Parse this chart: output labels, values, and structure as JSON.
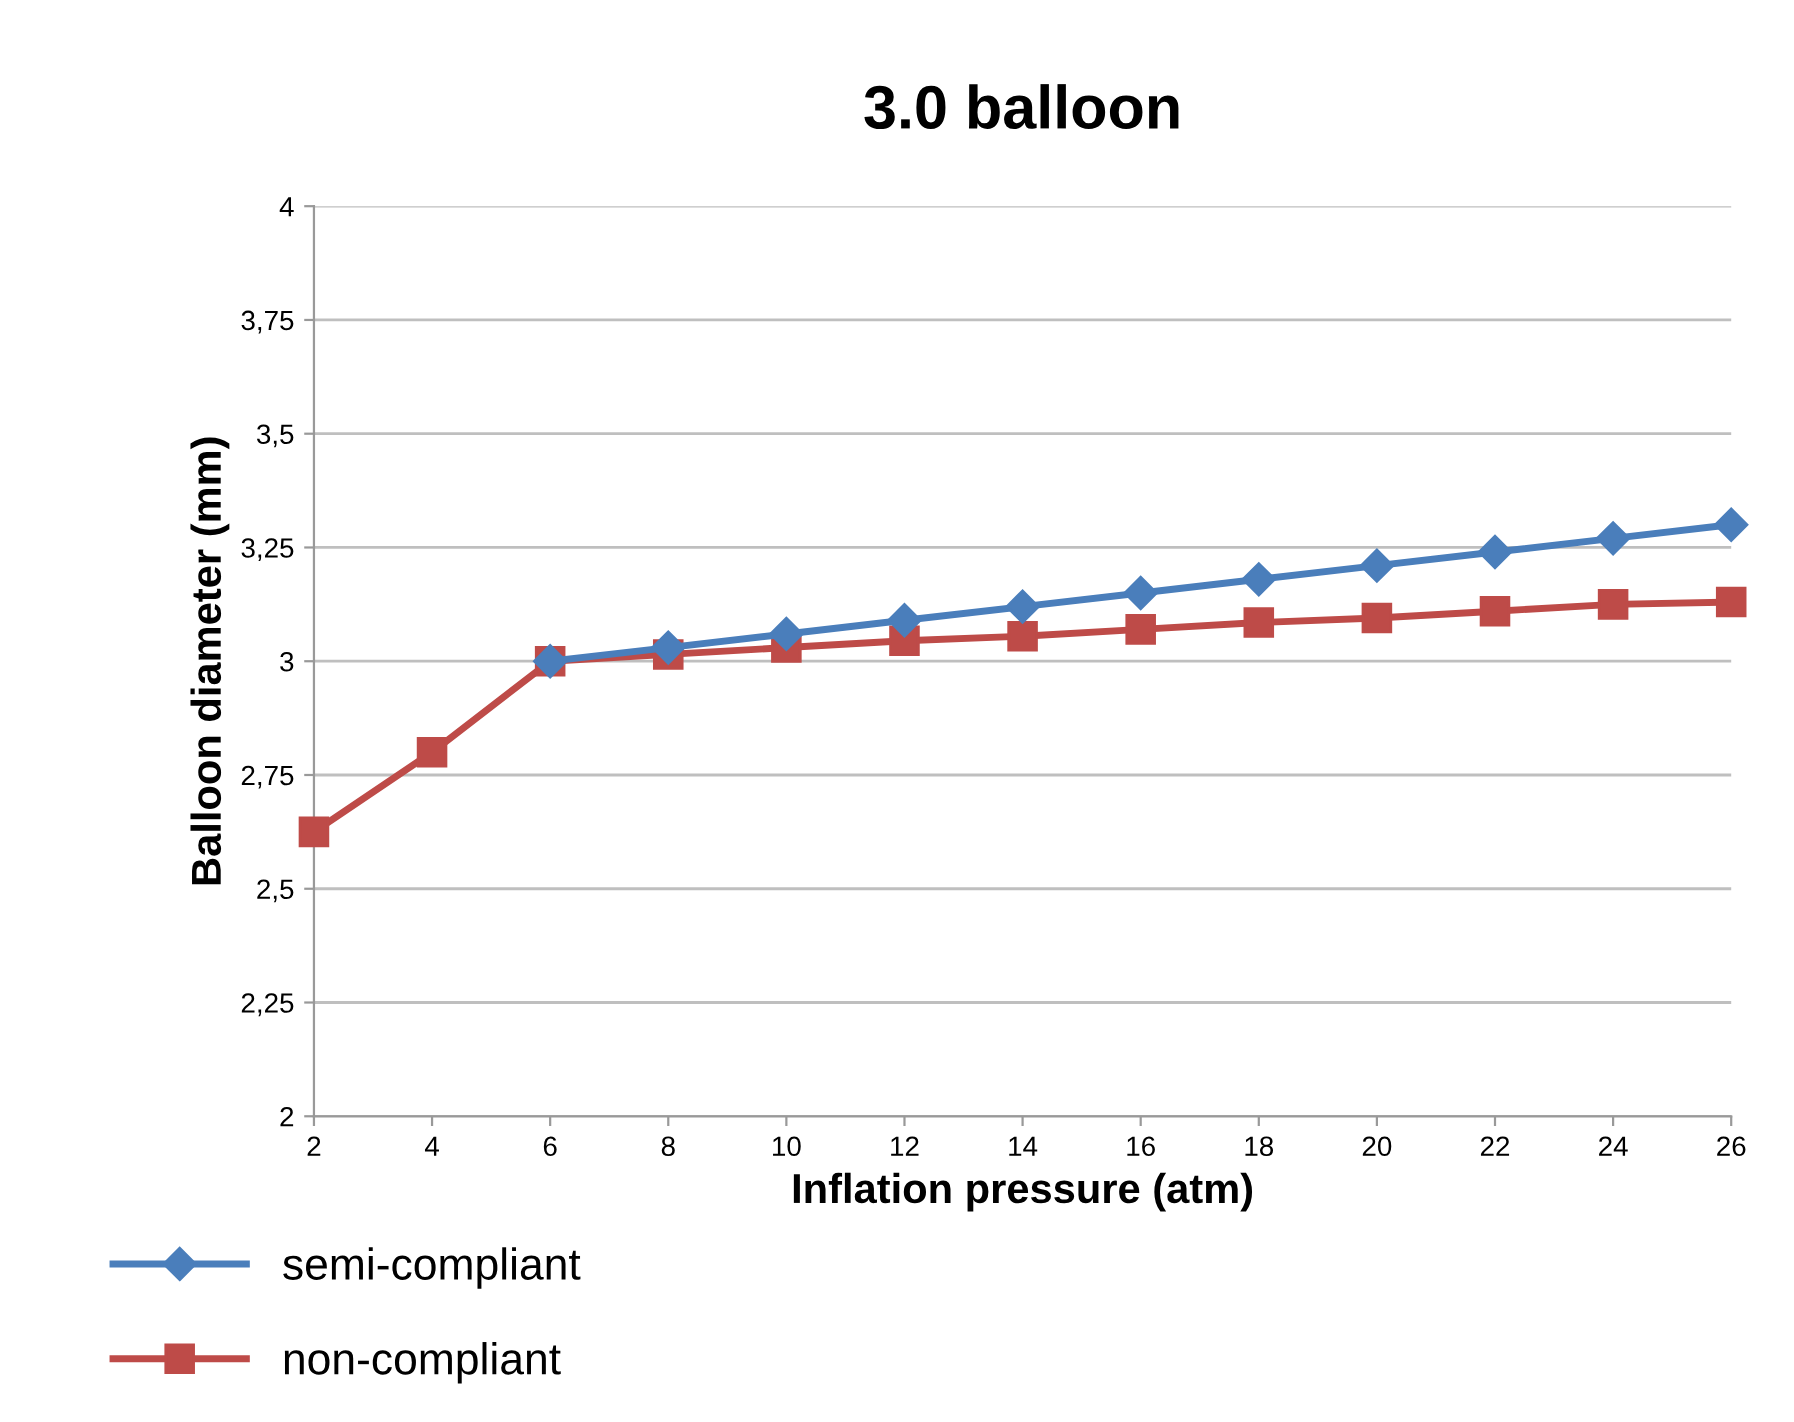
{
  "chart_data": {
    "type": "line",
    "title": "3.0 balloon",
    "xlabel": "Inflation pressure (atm)",
    "ylabel": "Balloon diameter (mm)",
    "categories": [
      "2",
      "4",
      "6",
      "8",
      "10",
      "12",
      "14",
      "16",
      "18",
      "20",
      "22",
      "24",
      "26"
    ],
    "series": [
      {
        "name": "semi-compliant",
        "color": "#4a7ebb",
        "marker": "diamond",
        "values": [
          null,
          null,
          3.0,
          3.03,
          3.06,
          3.09,
          3.12,
          3.15,
          3.18,
          3.21,
          3.24,
          3.27,
          3.3
        ]
      },
      {
        "name": "non-compliant",
        "color": "#be4b48",
        "marker": "square",
        "values": [
          2.625,
          2.8,
          3.0,
          3.015,
          3.03,
          3.045,
          3.055,
          3.07,
          3.085,
          3.095,
          3.11,
          3.125,
          3.13
        ]
      }
    ],
    "ylim": [
      2,
      4
    ],
    "yticks": [
      2,
      {
        "value": 2.25,
        "label": "2,25"
      },
      {
        "value": 2.5,
        "label": "2,5"
      },
      {
        "value": 2.75,
        "label": "2,75"
      },
      3,
      {
        "value": 3.25,
        "label": "3,25"
      },
      {
        "value": 3.5,
        "label": "3,5"
      },
      {
        "value": 3.75,
        "label": "3,75"
      },
      4
    ],
    "grid": "y",
    "legend": "bottom left",
    "line_style": "solid"
  }
}
